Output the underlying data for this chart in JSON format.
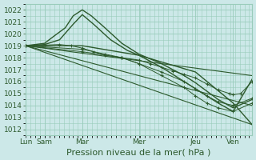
{
  "bg_color": "#cce8e8",
  "grid_color": "#99ccbb",
  "line_color": "#2d5a2d",
  "marker_color": "#2d5a2d",
  "xlabel": "Pression niveau de la mer( hPa )",
  "xlabel_fontsize": 8,
  "tick_fontsize": 6.5,
  "ylim": [
    1011.5,
    1022.5
  ],
  "yticks": [
    1012,
    1013,
    1014,
    1015,
    1016,
    1017,
    1018,
    1019,
    1020,
    1021,
    1022
  ],
  "day_labels": [
    "Lun",
    "Sam",
    "Mar",
    "Mer",
    "Jeu",
    "Ven"
  ],
  "day_positions": [
    0.0,
    0.167,
    0.5,
    1.0,
    1.5,
    1.833
  ],
  "xlim": [
    0,
    2.0
  ],
  "series": [
    {
      "type": "line",
      "points": [
        [
          0,
          1019.0
        ],
        [
          0.167,
          1019.2
        ],
        [
          0.25,
          1019.8
        ],
        [
          0.35,
          1020.5
        ],
        [
          0.42,
          1021.5
        ],
        [
          0.5,
          1022.0
        ],
        [
          0.58,
          1021.5
        ],
        [
          0.7,
          1020.5
        ],
        [
          0.85,
          1019.2
        ],
        [
          1.0,
          1018.3
        ],
        [
          1.2,
          1017.5
        ],
        [
          1.4,
          1016.5
        ],
        [
          1.5,
          1015.9
        ],
        [
          1.6,
          1015.2
        ],
        [
          1.7,
          1014.5
        ],
        [
          1.833,
          1013.8
        ],
        [
          2.0,
          1014.5
        ]
      ],
      "lw": 1.0,
      "marker": false
    },
    {
      "type": "line",
      "points": [
        [
          0,
          1019.0
        ],
        [
          0.167,
          1019.1
        ],
        [
          0.3,
          1019.5
        ],
        [
          0.42,
          1020.8
        ],
        [
          0.5,
          1021.6
        ],
        [
          0.6,
          1020.8
        ],
        [
          0.75,
          1019.5
        ],
        [
          0.9,
          1018.6
        ],
        [
          1.0,
          1018.2
        ],
        [
          1.2,
          1017.2
        ],
        [
          1.4,
          1016.0
        ],
        [
          1.5,
          1015.4
        ],
        [
          1.6,
          1014.8
        ],
        [
          1.7,
          1014.2
        ],
        [
          1.833,
          1013.5
        ],
        [
          2.0,
          1016.2
        ]
      ],
      "lw": 1.0,
      "marker": false
    },
    {
      "type": "line",
      "points": [
        [
          0,
          1019.0
        ],
        [
          0.5,
          1019.0
        ],
        [
          1.0,
          1018.2
        ],
        [
          1.5,
          1016.8
        ],
        [
          1.833,
          1014.2
        ],
        [
          2.0,
          1012.4
        ]
      ],
      "lw": 1.0,
      "marker": false
    },
    {
      "type": "line_marker",
      "points": [
        [
          0,
          1019.0
        ],
        [
          0.167,
          1019.05
        ],
        [
          0.3,
          1019.1
        ],
        [
          0.4,
          1019.0
        ],
        [
          0.5,
          1018.8
        ],
        [
          0.6,
          1018.5
        ],
        [
          0.7,
          1018.2
        ],
        [
          0.85,
          1018.0
        ],
        [
          1.0,
          1017.8
        ],
        [
          1.1,
          1017.5
        ],
        [
          1.2,
          1017.2
        ],
        [
          1.3,
          1016.9
        ],
        [
          1.4,
          1016.6
        ],
        [
          1.5,
          1016.3
        ],
        [
          1.6,
          1015.8
        ],
        [
          1.7,
          1015.3
        ],
        [
          1.8,
          1015.0
        ],
        [
          1.833,
          1014.9
        ],
        [
          1.9,
          1015.0
        ],
        [
          2.0,
          1016.0
        ]
      ],
      "lw": 0.7,
      "marker": true
    },
    {
      "type": "line_marker",
      "points": [
        [
          0,
          1019.0
        ],
        [
          0.5,
          1018.7
        ],
        [
          0.7,
          1018.3
        ],
        [
          0.85,
          1018.0
        ],
        [
          1.0,
          1017.5
        ],
        [
          1.2,
          1016.8
        ],
        [
          1.4,
          1016.0
        ],
        [
          1.5,
          1015.4
        ],
        [
          1.6,
          1014.8
        ],
        [
          1.7,
          1014.3
        ],
        [
          1.833,
          1014.0
        ],
        [
          2.0,
          1014.6
        ]
      ],
      "lw": 0.7,
      "marker": true
    },
    {
      "type": "line_marker",
      "points": [
        [
          0,
          1019.0
        ],
        [
          0.5,
          1018.5
        ],
        [
          0.85,
          1018.0
        ],
        [
          1.0,
          1017.5
        ],
        [
          1.2,
          1016.5
        ],
        [
          1.4,
          1015.5
        ],
        [
          1.5,
          1014.8
        ],
        [
          1.6,
          1014.2
        ],
        [
          1.7,
          1013.8
        ],
        [
          1.833,
          1013.5
        ],
        [
          2.0,
          1014.2
        ]
      ],
      "lw": 0.7,
      "marker": true
    },
    {
      "type": "line",
      "points": [
        [
          0,
          1019.0
        ],
        [
          2.0,
          1014.0
        ]
      ],
      "lw": 0.8,
      "marker": false
    },
    {
      "type": "line",
      "points": [
        [
          0,
          1019.0
        ],
        [
          2.0,
          1016.5
        ]
      ],
      "lw": 0.8,
      "marker": false
    },
    {
      "type": "line",
      "points": [
        [
          0,
          1019.0
        ],
        [
          2.0,
          1012.4
        ]
      ],
      "lw": 0.8,
      "marker": false
    }
  ]
}
